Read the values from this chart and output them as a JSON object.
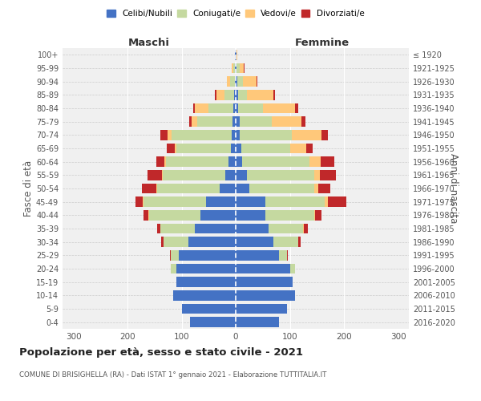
{
  "age_groups": [
    "0-4",
    "5-9",
    "10-14",
    "15-19",
    "20-24",
    "25-29",
    "30-34",
    "35-39",
    "40-44",
    "45-49",
    "50-54",
    "55-59",
    "60-64",
    "65-69",
    "70-74",
    "75-79",
    "80-84",
    "85-89",
    "90-94",
    "95-99",
    "100+"
  ],
  "birth_years": [
    "2016-2020",
    "2011-2015",
    "2006-2010",
    "2001-2005",
    "1996-2000",
    "1991-1995",
    "1986-1990",
    "1981-1985",
    "1976-1980",
    "1971-1975",
    "1966-1970",
    "1961-1965",
    "1956-1960",
    "1951-1955",
    "1946-1950",
    "1941-1945",
    "1936-1940",
    "1931-1935",
    "1926-1930",
    "1921-1925",
    "≤ 1920"
  ],
  "males": {
    "celibi": [
      85,
      100,
      115,
      110,
      110,
      105,
      88,
      75,
      65,
      55,
      30,
      20,
      14,
      9,
      8,
      6,
      5,
      3,
      2,
      2,
      1
    ],
    "coniugati": [
      0,
      0,
      0,
      0,
      10,
      15,
      45,
      65,
      95,
      115,
      115,
      115,
      115,
      100,
      110,
      65,
      45,
      18,
      8,
      3,
      1
    ],
    "vedovi": [
      0,
      0,
      0,
      0,
      0,
      0,
      0,
      0,
      1,
      2,
      2,
      2,
      3,
      4,
      8,
      10,
      25,
      15,
      6,
      2,
      0
    ],
    "divorziati": [
      0,
      0,
      0,
      0,
      0,
      2,
      5,
      5,
      9,
      13,
      27,
      26,
      14,
      14,
      14,
      5,
      3,
      2,
      1,
      0,
      0
    ]
  },
  "females": {
    "nubili": [
      80,
      95,
      110,
      105,
      100,
      80,
      70,
      60,
      55,
      55,
      25,
      20,
      12,
      10,
      8,
      7,
      5,
      5,
      3,
      2,
      1
    ],
    "coniugate": [
      0,
      0,
      0,
      0,
      10,
      15,
      45,
      65,
      90,
      110,
      120,
      125,
      125,
      90,
      95,
      60,
      45,
      15,
      10,
      5,
      1
    ],
    "vedove": [
      0,
      0,
      0,
      0,
      0,
      0,
      0,
      1,
      2,
      5,
      8,
      10,
      20,
      30,
      55,
      55,
      60,
      50,
      25,
      8,
      1
    ],
    "divorziate": [
      0,
      0,
      0,
      0,
      0,
      2,
      5,
      7,
      12,
      35,
      22,
      30,
      25,
      12,
      12,
      7,
      6,
      3,
      2,
      2,
      0
    ]
  },
  "colors": {
    "celibi_nubili": "#4472c4",
    "coniugati": "#c5d9a0",
    "vedovi": "#ffc87a",
    "divorziati": "#c0282a"
  },
  "title": "Popolazione per età, sesso e stato civile - 2021",
  "subtitle": "COMUNE DI BRISIGHELLA (RA) - Dati ISTAT 1° gennaio 2021 - Elaborazione TUTTITALIA.IT",
  "xlabel_left": "Maschi",
  "xlabel_right": "Femmine",
  "ylabel_left": "Fasce di età",
  "ylabel_right": "Anni di nascita",
  "xlim": 320,
  "background_color": "#f0f0f0",
  "bar_height": 0.75
}
